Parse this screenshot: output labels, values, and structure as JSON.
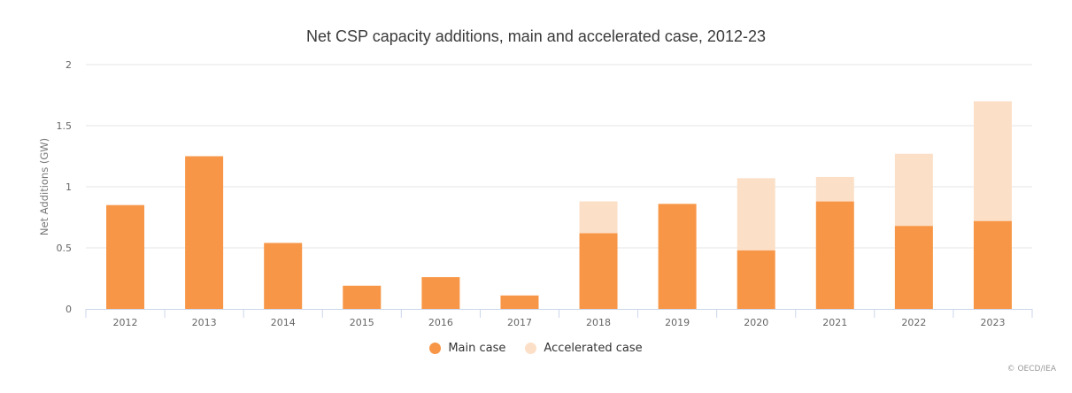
{
  "chart_data": {
    "type": "bar",
    "stacked": true,
    "title": "Net CSP capacity additions, main and accelerated case, 2012-23",
    "xlabel": "",
    "ylabel": "Net Additions (GW)",
    "ylim": [
      0,
      2
    ],
    "yticks": [
      0,
      0.5,
      1,
      1.5,
      2
    ],
    "ytick_labels": [
      "0",
      "0.5",
      "1",
      "1.5",
      "2"
    ],
    "grid": true,
    "legend_position": "bottom-center",
    "categories": [
      "2012",
      "2013",
      "2014",
      "2015",
      "2016",
      "2017",
      "2018",
      "2019",
      "2020",
      "2021",
      "2022",
      "2023"
    ],
    "series": [
      {
        "name": "Main case",
        "color": "#f79646",
        "values": [
          0.85,
          1.25,
          0.54,
          0.19,
          0.26,
          0.11,
          0.62,
          0.86,
          0.48,
          0.88,
          0.68,
          0.72
        ]
      },
      {
        "name": "Accelerated case",
        "color": "#fcdfc7",
        "values": [
          0,
          0,
          0,
          0,
          0,
          0,
          0.26,
          0,
          0.59,
          0.2,
          0.59,
          0.98
        ]
      }
    ]
  },
  "credit": "© OECD/IEA"
}
